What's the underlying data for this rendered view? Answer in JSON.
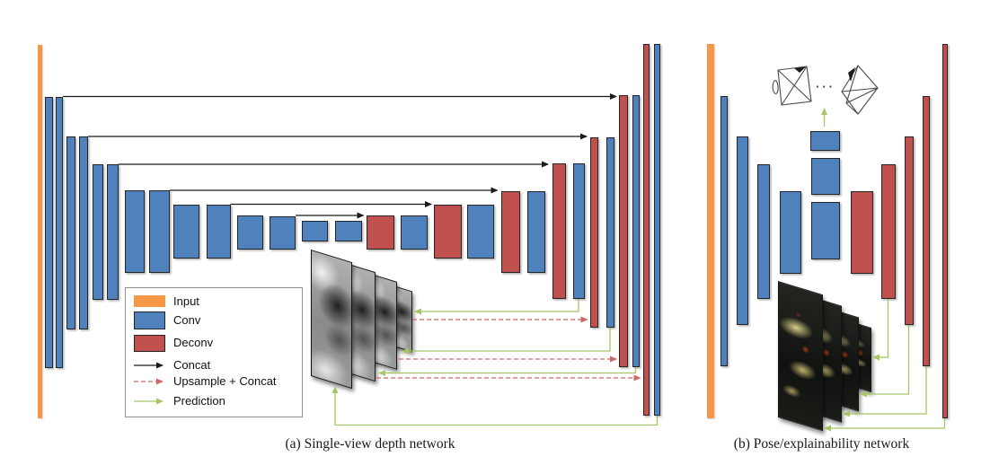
{
  "figure": {
    "captions": {
      "a": "(a) Single-view depth network",
      "b": "(b) Pose/explainability network"
    },
    "ellipsis": "···"
  },
  "colors": {
    "input": "#F79646",
    "conv": "#4F81BD",
    "deconv": "#C0504D",
    "concat_arrow": "#1A1A1A",
    "upsample_arrow": "#CD6864",
    "prediction_arrow": "#A5C663",
    "bar_border": "#262626",
    "legend_border": "#909090",
    "background": "#FFFFFF",
    "caption_text": "#1A1A1A",
    "frustum_stroke": "#4A4A4A"
  },
  "legend": {
    "items": [
      {
        "kind": "swatch",
        "color_key": "input",
        "label": "Input"
      },
      {
        "kind": "swatch",
        "color_key": "conv",
        "label": "Conv"
      },
      {
        "kind": "swatch",
        "color_key": "deconv",
        "label": "Deconv"
      },
      {
        "kind": "arrow",
        "color_key": "concat_arrow",
        "style": "solid",
        "label": "Concat"
      },
      {
        "kind": "arrow",
        "color_key": "upsample_arrow",
        "style": "dashed",
        "label": "Upsample + Concat"
      },
      {
        "kind": "arrow",
        "color_key": "prediction_arrow",
        "style": "solid",
        "label": "Prediction"
      }
    ]
  },
  "panel_a": {
    "name": "single-view-depth-network",
    "input_bar": [
      42,
      50,
      5,
      416
    ],
    "encoder_conv_bars": [
      [
        49.5,
        108,
        9,
        302
      ],
      [
        62,
        108,
        8,
        302
      ],
      [
        73.5,
        152,
        10,
        215
      ],
      [
        87.5,
        152,
        10.5,
        215
      ],
      [
        102.5,
        183,
        12.5,
        151
      ],
      [
        119,
        183,
        12.5,
        151
      ],
      [
        138.5,
        212,
        22.5,
        92
      ],
      [
        166,
        212,
        23,
        92
      ],
      [
        193,
        228,
        28.5,
        60
      ],
      [
        229.5,
        228,
        27,
        60
      ],
      [
        264,
        240,
        29,
        38
      ],
      [
        300,
        241,
        29,
        37
      ],
      [
        336,
        246,
        29,
        23
      ],
      [
        372.5,
        246,
        30,
        23
      ]
    ],
    "decoder_deconv_bars": [
      [
        407.5,
        240,
        31,
        38
      ],
      [
        483,
        228,
        31,
        60
      ],
      [
        557.5,
        212.5,
        21,
        91.5
      ],
      [
        614.5,
        182,
        15.5,
        151
      ],
      [
        656.5,
        153,
        9,
        212
      ],
      [
        689,
        106,
        10,
        303
      ],
      [
        715.5,
        49,
        7,
        414
      ]
    ],
    "decoder_conv_bars": [
      [
        446,
        240,
        30,
        38
      ],
      [
        520,
        228,
        29.5,
        60
      ],
      [
        587,
        212.5,
        20,
        91.5
      ],
      [
        637.5,
        182,
        13.5,
        151
      ],
      [
        674.5,
        153,
        9,
        212
      ],
      [
        703.5,
        106,
        8.5,
        303
      ],
      [
        728,
        49,
        7,
        414
      ]
    ],
    "concat_arrows": [
      [
        70,
        107.5,
        686
      ],
      [
        98,
        152,
        653
      ],
      [
        131.5,
        183,
        610
      ],
      [
        189,
        212,
        553.5
      ],
      [
        256.5,
        227.5,
        480
      ],
      [
        329,
        240,
        404.5
      ]
    ],
    "prediction_paths": [
      [
        [
          644,
          333
        ],
        [
          644,
          347
        ],
        [
          462,
          347
        ]
      ],
      [
        [
          679,
          365
        ],
        [
          679,
          391
        ],
        [
          448,
          391
        ]
      ],
      [
        [
          707.5,
          409
        ],
        [
          707.5,
          415.5
        ],
        [
          422,
          415.5
        ]
      ],
      [
        [
          731.5,
          463
        ],
        [
          731.5,
          473.5
        ],
        [
          373,
          473.5
        ],
        [
          373,
          431
        ]
      ]
    ],
    "upsample_paths": [
      [
        [
          459,
          356
        ],
        [
          653.5,
          356
        ]
      ],
      [
        [
          444,
          400
        ],
        [
          686,
          400
        ]
      ],
      [
        [
          419,
          421
        ],
        [
          712.5,
          421
        ]
      ]
    ],
    "depth_map_sheets": [
      [
        346,
        278,
        46,
        141
      ],
      [
        375,
        290,
        43,
        122
      ],
      [
        403,
        302,
        39,
        98
      ],
      [
        428,
        315,
        31,
        68
      ]
    ]
  },
  "panel_b": {
    "name": "pose-explainability-network",
    "input_bar": [
      787,
      49,
      7.5,
      417
    ],
    "conv_bars": [
      [
        801.5,
        107,
        8.5,
        301
      ],
      [
        820,
        152,
        12.5,
        210
      ],
      [
        842.5,
        183,
        14,
        150
      ],
      [
        868,
        212.5,
        23.5,
        92.5
      ]
    ],
    "bottleneck_blocks": [
      [
        902,
        146,
        33,
        21.5
      ],
      [
        902.5,
        176,
        32,
        41
      ],
      [
        902.5,
        225,
        32,
        63.5
      ]
    ],
    "deconv_bars": [
      [
        946.5,
        212.5,
        25,
        92.5
      ],
      [
        981,
        183,
        15.5,
        150
      ],
      [
        1006.5,
        152,
        10.5,
        210
      ],
      [
        1026.5,
        107,
        8.5,
        301
      ],
      [
        1048.5,
        49,
        6,
        417
      ]
    ],
    "prediction_paths": [
      [
        [
          988.5,
          333
        ],
        [
          988.5,
          398
        ],
        [
          972,
          398
        ]
      ],
      [
        [
          1011.5,
          362
        ],
        [
          1011.5,
          439
        ],
        [
          958,
          439
        ]
      ],
      [
        [
          1031,
          408
        ],
        [
          1031,
          461
        ],
        [
          939,
          461
        ]
      ],
      [
        [
          1051.5,
          466
        ],
        [
          1051.5,
          477
        ],
        [
          918,
          477
        ]
      ]
    ],
    "pose_output_arrow": [
      [
        917.5,
        141
      ],
      [
        917.5,
        121
      ]
    ],
    "mask_sheets": [
      [
        866,
        313,
        50,
        152
      ],
      [
        892,
        327,
        45,
        130
      ],
      [
        915,
        341,
        41,
        105
      ],
      [
        937,
        355,
        33,
        72
      ]
    ]
  }
}
